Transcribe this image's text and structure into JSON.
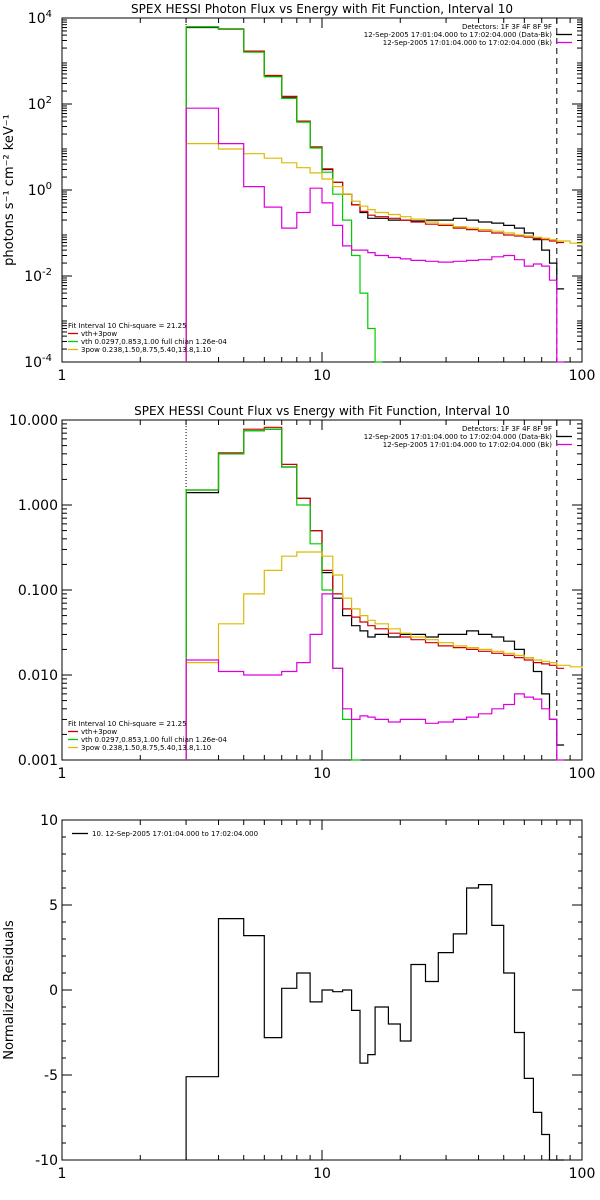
{
  "chart_data": [
    {
      "type": "line",
      "title": "SPEX HESSI Photon Flux vs Energy with Fit Function, Interval 10",
      "ylabel": "photons s⁻¹ cm⁻² keV⁻¹",
      "xlim": [
        1,
        100
      ],
      "ylim": [
        0.0001,
        10000
      ],
      "xscale": "log",
      "yscale": "log",
      "xticks": [
        {
          "v": 1,
          "label": "1"
        },
        {
          "v": 10,
          "label": "10"
        },
        {
          "v": 100,
          "label": "100"
        }
      ],
      "yticks": [
        {
          "v": 10000,
          "label": "10",
          "sup": "4"
        },
        {
          "v": 100,
          "label": "10",
          "sup": "2"
        },
        {
          "v": 1,
          "label": "10",
          "sup": "0"
        },
        {
          "v": 0.01,
          "label": "10",
          "sup": "-2"
        },
        {
          "v": 0.0001,
          "label": "10",
          "sup": "-4"
        }
      ],
      "legend_top": [
        {
          "text": "Detectors: 1F 3F 4F 8F 9F",
          "color": null
        },
        {
          "text": "12-Sep-2005 17:01:04.000 to 17:02:04.000 (Data-Bk)",
          "color": "#000000"
        },
        {
          "text": "12-Sep-2005 17:01:04.000 to 17:02:04.000 (Bk)",
          "color": "#dd00dd"
        }
      ],
      "legend_bottom": [
        {
          "text": "Fit Interval 10   Chi-square = 21.25",
          "color": null
        },
        {
          "text": "vth+3pow",
          "color": "#cc0000"
        },
        {
          "text": "vth 0.0297,0.853,1.00  full chian 1.26e-04",
          "color": "#00cc00"
        },
        {
          "text": "3pow 0.238,1.50,8.75,5.40,13.8,1.10",
          "color": "#ddbb00"
        }
      ],
      "vlines": [
        {
          "x": 3,
          "style": "dotted"
        },
        {
          "x": 80,
          "style": "dashed"
        }
      ],
      "series": [
        {
          "color": "#000000",
          "x": [
            3,
            4,
            5,
            6,
            7,
            8,
            9,
            10,
            11,
            12,
            13,
            14,
            15,
            16,
            18,
            20,
            22,
            25,
            28,
            32,
            36,
            40,
            45,
            50,
            55,
            60,
            65,
            70,
            75,
            80
          ],
          "values": [
            6000,
            5500,
            1700,
            450,
            140,
            40,
            10,
            3,
            1.5,
            0.8,
            0.45,
            0.3,
            0.22,
            0.22,
            0.2,
            0.2,
            0.19,
            0.2,
            0.2,
            0.22,
            0.2,
            0.18,
            0.17,
            0.15,
            0.13,
            0.1,
            0.07,
            0.04,
            0.02,
            0.005
          ]
        },
        {
          "color": "#cc0000",
          "x": [
            3,
            4,
            5,
            6,
            7,
            8,
            9,
            10,
            11,
            12,
            13,
            14,
            15,
            16,
            18,
            20,
            22,
            25,
            28,
            32,
            36,
            40,
            45,
            50,
            55,
            60,
            65,
            70,
            75,
            80
          ],
          "values": [
            6200,
            5600,
            1700,
            460,
            150,
            40,
            10,
            3.1,
            1.5,
            0.8,
            0.45,
            0.32,
            0.26,
            0.24,
            0.22,
            0.2,
            0.18,
            0.16,
            0.15,
            0.13,
            0.12,
            0.11,
            0.1,
            0.09,
            0.085,
            0.08,
            0.075,
            0.07,
            0.065,
            0.06
          ]
        },
        {
          "color": "#00cc00",
          "x": [
            3,
            4,
            5,
            6,
            7,
            8,
            9,
            10,
            11,
            12,
            13,
            14,
            15,
            16
          ],
          "values": [
            6200,
            5500,
            1600,
            430,
            135,
            38,
            9.5,
            2.6,
            0.8,
            0.2,
            0.03,
            0.004,
            0.0006,
            0.0001
          ]
        },
        {
          "color": "#ddbb00",
          "x": [
            3,
            4,
            5,
            6,
            7,
            8,
            9,
            10,
            11,
            12,
            13,
            14,
            15,
            16,
            18,
            20,
            22,
            25,
            28,
            32,
            36,
            40,
            45,
            50,
            55,
            60,
            65,
            70,
            75,
            80,
            90,
            100
          ],
          "values": [
            12,
            9,
            7,
            5.5,
            4.3,
            3.3,
            2.5,
            1.8,
            1.2,
            0.8,
            0.55,
            0.42,
            0.35,
            0.3,
            0.27,
            0.24,
            0.21,
            0.18,
            0.16,
            0.14,
            0.13,
            0.12,
            0.11,
            0.1,
            0.09,
            0.085,
            0.08,
            0.075,
            0.07,
            0.065,
            0.058,
            0.05
          ]
        },
        {
          "color": "#dd00dd",
          "x": [
            3,
            4,
            5,
            6,
            7,
            8,
            9,
            10,
            11,
            12,
            13,
            14,
            15,
            16,
            18,
            20,
            22,
            25,
            28,
            32,
            36,
            40,
            45,
            50,
            55,
            60,
            65,
            70,
            75,
            80
          ],
          "values": [
            80,
            12,
            1.2,
            0.4,
            0.13,
            0.3,
            1.1,
            0.5,
            0.15,
            0.05,
            0.04,
            0.04,
            0.035,
            0.03,
            0.027,
            0.025,
            0.023,
            0.022,
            0.021,
            0.022,
            0.023,
            0.024,
            0.028,
            0.03,
            0.024,
            0.017,
            0.019,
            0.017,
            0.008,
            0.0001
          ]
        }
      ]
    },
    {
      "type": "line",
      "title": "SPEX HESSI Count Flux vs Energy with Fit Function, Interval 10",
      "ylabel": "",
      "xlim": [
        1,
        100
      ],
      "ylim": [
        0.001,
        10
      ],
      "xscale": "log",
      "yscale": "log",
      "xticks": [
        {
          "v": 1,
          "label": "1"
        },
        {
          "v": 10,
          "label": "10"
        },
        {
          "v": 100,
          "label": "100"
        }
      ],
      "yticks": [
        {
          "v": 10,
          "label": "10.000"
        },
        {
          "v": 1,
          "label": "1.000"
        },
        {
          "v": 0.1,
          "label": "0.100"
        },
        {
          "v": 0.01,
          "label": "0.010"
        },
        {
          "v": 0.001,
          "label": "0.001"
        }
      ],
      "legend_top": [
        {
          "text": "Detectors: 1F 3F 4F 8F 9F",
          "color": null
        },
        {
          "text": "12-Sep-2005 17:01:04.000 to 17:02:04.000 (Data-Bk)",
          "color": "#000000"
        },
        {
          "text": "12-Sep-2005 17:01:04.000 to 17:02:04.000 (Bk)",
          "color": "#dd00dd"
        }
      ],
      "legend_bottom": [
        {
          "text": "Fit Interval 10   Chi-square = 21.25",
          "color": null
        },
        {
          "text": "vth+3pow",
          "color": "#cc0000"
        },
        {
          "text": "vth 0.0297,0.853,1.00  full chian 1.26e-04",
          "color": "#00cc00"
        },
        {
          "text": "3pow 0.238,1.50,8.75,5.40,13.8,1.10",
          "color": "#ddbb00"
        }
      ],
      "vlines": [
        {
          "x": 3,
          "style": "dotted"
        },
        {
          "x": 80,
          "style": "dashed"
        }
      ],
      "series": [
        {
          "color": "#000000",
          "x": [
            3,
            4,
            5,
            6,
            7,
            8,
            9,
            10,
            11,
            12,
            13,
            14,
            15,
            16,
            18,
            20,
            22,
            25,
            28,
            32,
            36,
            40,
            45,
            50,
            55,
            60,
            65,
            70,
            75,
            80
          ],
          "values": [
            1.4,
            4,
            7.5,
            7.8,
            2.8,
            1.2,
            0.5,
            0.16,
            0.08,
            0.05,
            0.038,
            0.033,
            0.028,
            0.03,
            0.028,
            0.03,
            0.03,
            0.028,
            0.03,
            0.03,
            0.033,
            0.03,
            0.028,
            0.025,
            0.02,
            0.016,
            0.011,
            0.006,
            0.003,
            0.0015
          ]
        },
        {
          "color": "#cc0000",
          "x": [
            3,
            4,
            5,
            6,
            7,
            8,
            9,
            10,
            11,
            12,
            13,
            14,
            15,
            16,
            18,
            20,
            22,
            25,
            28,
            32,
            36,
            40,
            45,
            50,
            55,
            60,
            65,
            70,
            75,
            80
          ],
          "values": [
            1.5,
            4.1,
            7.8,
            8.2,
            3,
            1.2,
            0.5,
            0.17,
            0.09,
            0.06,
            0.048,
            0.042,
            0.038,
            0.035,
            0.031,
            0.028,
            0.026,
            0.024,
            0.022,
            0.021,
            0.02,
            0.019,
            0.018,
            0.017,
            0.016,
            0.015,
            0.014,
            0.0135,
            0.013,
            0.012
          ]
        },
        {
          "color": "#00cc00",
          "x": [
            3,
            4,
            5,
            6,
            7,
            8,
            9,
            10,
            11,
            12,
            13
          ],
          "values": [
            1.5,
            4,
            7.5,
            7.8,
            2.8,
            1,
            0.35,
            0.1,
            0.012,
            0.003,
            0.001
          ]
        },
        {
          "color": "#ddbb00",
          "x": [
            3,
            4,
            5,
            6,
            7,
            8,
            9,
            10,
            11,
            12,
            13,
            14,
            15,
            16,
            18,
            20,
            22,
            25,
            28,
            32,
            36,
            40,
            45,
            50,
            55,
            60,
            65,
            70,
            75,
            80,
            90,
            100
          ],
          "values": [
            0.014,
            0.04,
            0.09,
            0.17,
            0.25,
            0.28,
            0.28,
            0.25,
            0.15,
            0.08,
            0.06,
            0.05,
            0.044,
            0.04,
            0.035,
            0.031,
            0.028,
            0.026,
            0.024,
            0.022,
            0.021,
            0.02,
            0.019,
            0.018,
            0.017,
            0.016,
            0.015,
            0.0145,
            0.014,
            0.013,
            0.0125,
            0.012
          ]
        },
        {
          "color": "#dd00dd",
          "x": [
            3,
            4,
            5,
            6,
            7,
            8,
            9,
            10,
            11,
            12,
            13,
            14,
            15,
            16,
            18,
            20,
            22,
            25,
            28,
            32,
            36,
            40,
            45,
            50,
            55,
            60,
            65,
            70,
            75,
            80
          ],
          "values": [
            0.015,
            0.011,
            0.01,
            0.01,
            0.011,
            0.014,
            0.03,
            0.09,
            0.012,
            0.004,
            0.003,
            0.0033,
            0.0032,
            0.003,
            0.0028,
            0.003,
            0.003,
            0.0027,
            0.0028,
            0.003,
            0.0032,
            0.0035,
            0.004,
            0.0045,
            0.006,
            0.0055,
            0.0052,
            0.004,
            0.003,
            0.0008
          ]
        }
      ]
    },
    {
      "type": "line",
      "title": "",
      "ylabel": "Normalized Residuals",
      "xlim": [
        1,
        100
      ],
      "ylim": [
        -10,
        10
      ],
      "xscale": "log",
      "yscale": "linear",
      "xticks": [
        {
          "v": 1,
          "label": "1"
        },
        {
          "v": 10,
          "label": "10"
        },
        {
          "v": 100,
          "label": "100"
        }
      ],
      "yticks": [
        {
          "v": 10,
          "label": "10"
        },
        {
          "v": 5,
          "label": "5"
        },
        {
          "v": 0,
          "label": "0"
        },
        {
          "v": -5,
          "label": "-5"
        },
        {
          "v": -10,
          "label": "-10"
        }
      ],
      "legend_top_left": {
        "text": "10. 12-Sep-2005 17:01:04.000 to 17:02:04.000",
        "color": "#000000"
      },
      "series": [
        {
          "color": "#000000",
          "x": [
            3,
            4,
            5,
            6,
            7,
            8,
            9,
            10,
            11,
            12,
            13,
            14,
            15,
            16,
            18,
            20,
            22,
            25,
            28,
            32,
            36,
            40,
            45,
            50,
            55,
            60,
            65,
            70,
            75,
            80
          ],
          "values": [
            -5.1,
            4.2,
            3.2,
            -2.8,
            0.1,
            1,
            -0.7,
            0,
            -0.1,
            0,
            -1.2,
            -4.3,
            -3.8,
            -1,
            -2,
            -3,
            1.5,
            0.5,
            2.2,
            3.3,
            6,
            6.2,
            3.8,
            1,
            -2.5,
            -5.2,
            -7.2,
            -8.5,
            -10,
            -10
          ]
        }
      ]
    }
  ]
}
